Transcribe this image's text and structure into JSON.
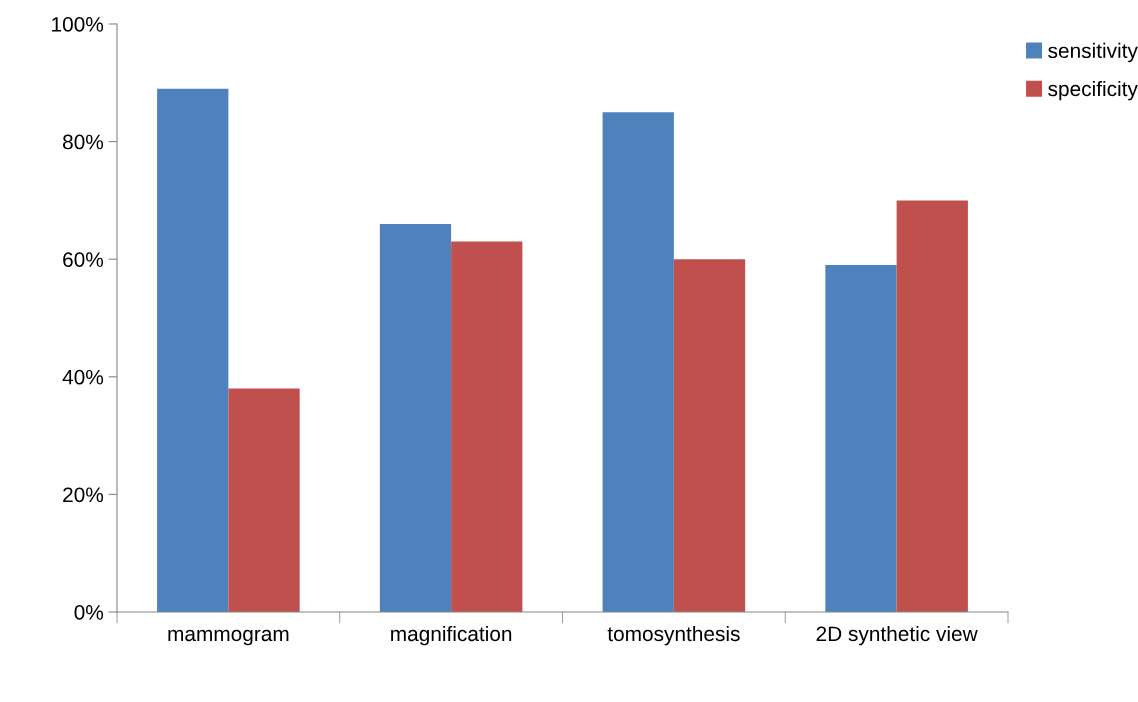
{
  "chart_data": {
    "type": "bar",
    "categories": [
      "mammogram",
      "magnification",
      "tomosynthesis",
      "2D synthetic view"
    ],
    "series": [
      {
        "name": "sensitivity",
        "color": "#4f81bd",
        "values": [
          89,
          66,
          85,
          59
        ]
      },
      {
        "name": "specificity",
        "color": "#c0504d",
        "values": [
          38,
          63,
          60,
          70
        ]
      }
    ],
    "ylim": [
      0,
      100
    ],
    "yticks": [
      {
        "value": 0,
        "label": "0%"
      },
      {
        "value": 20,
        "label": "20%"
      },
      {
        "value": 40,
        "label": "40%"
      },
      {
        "value": 60,
        "label": "60%"
      },
      {
        "value": 80,
        "label": "80%"
      },
      {
        "value": 100,
        "label": "100%"
      }
    ],
    "grid": false,
    "legend": "top right"
  }
}
